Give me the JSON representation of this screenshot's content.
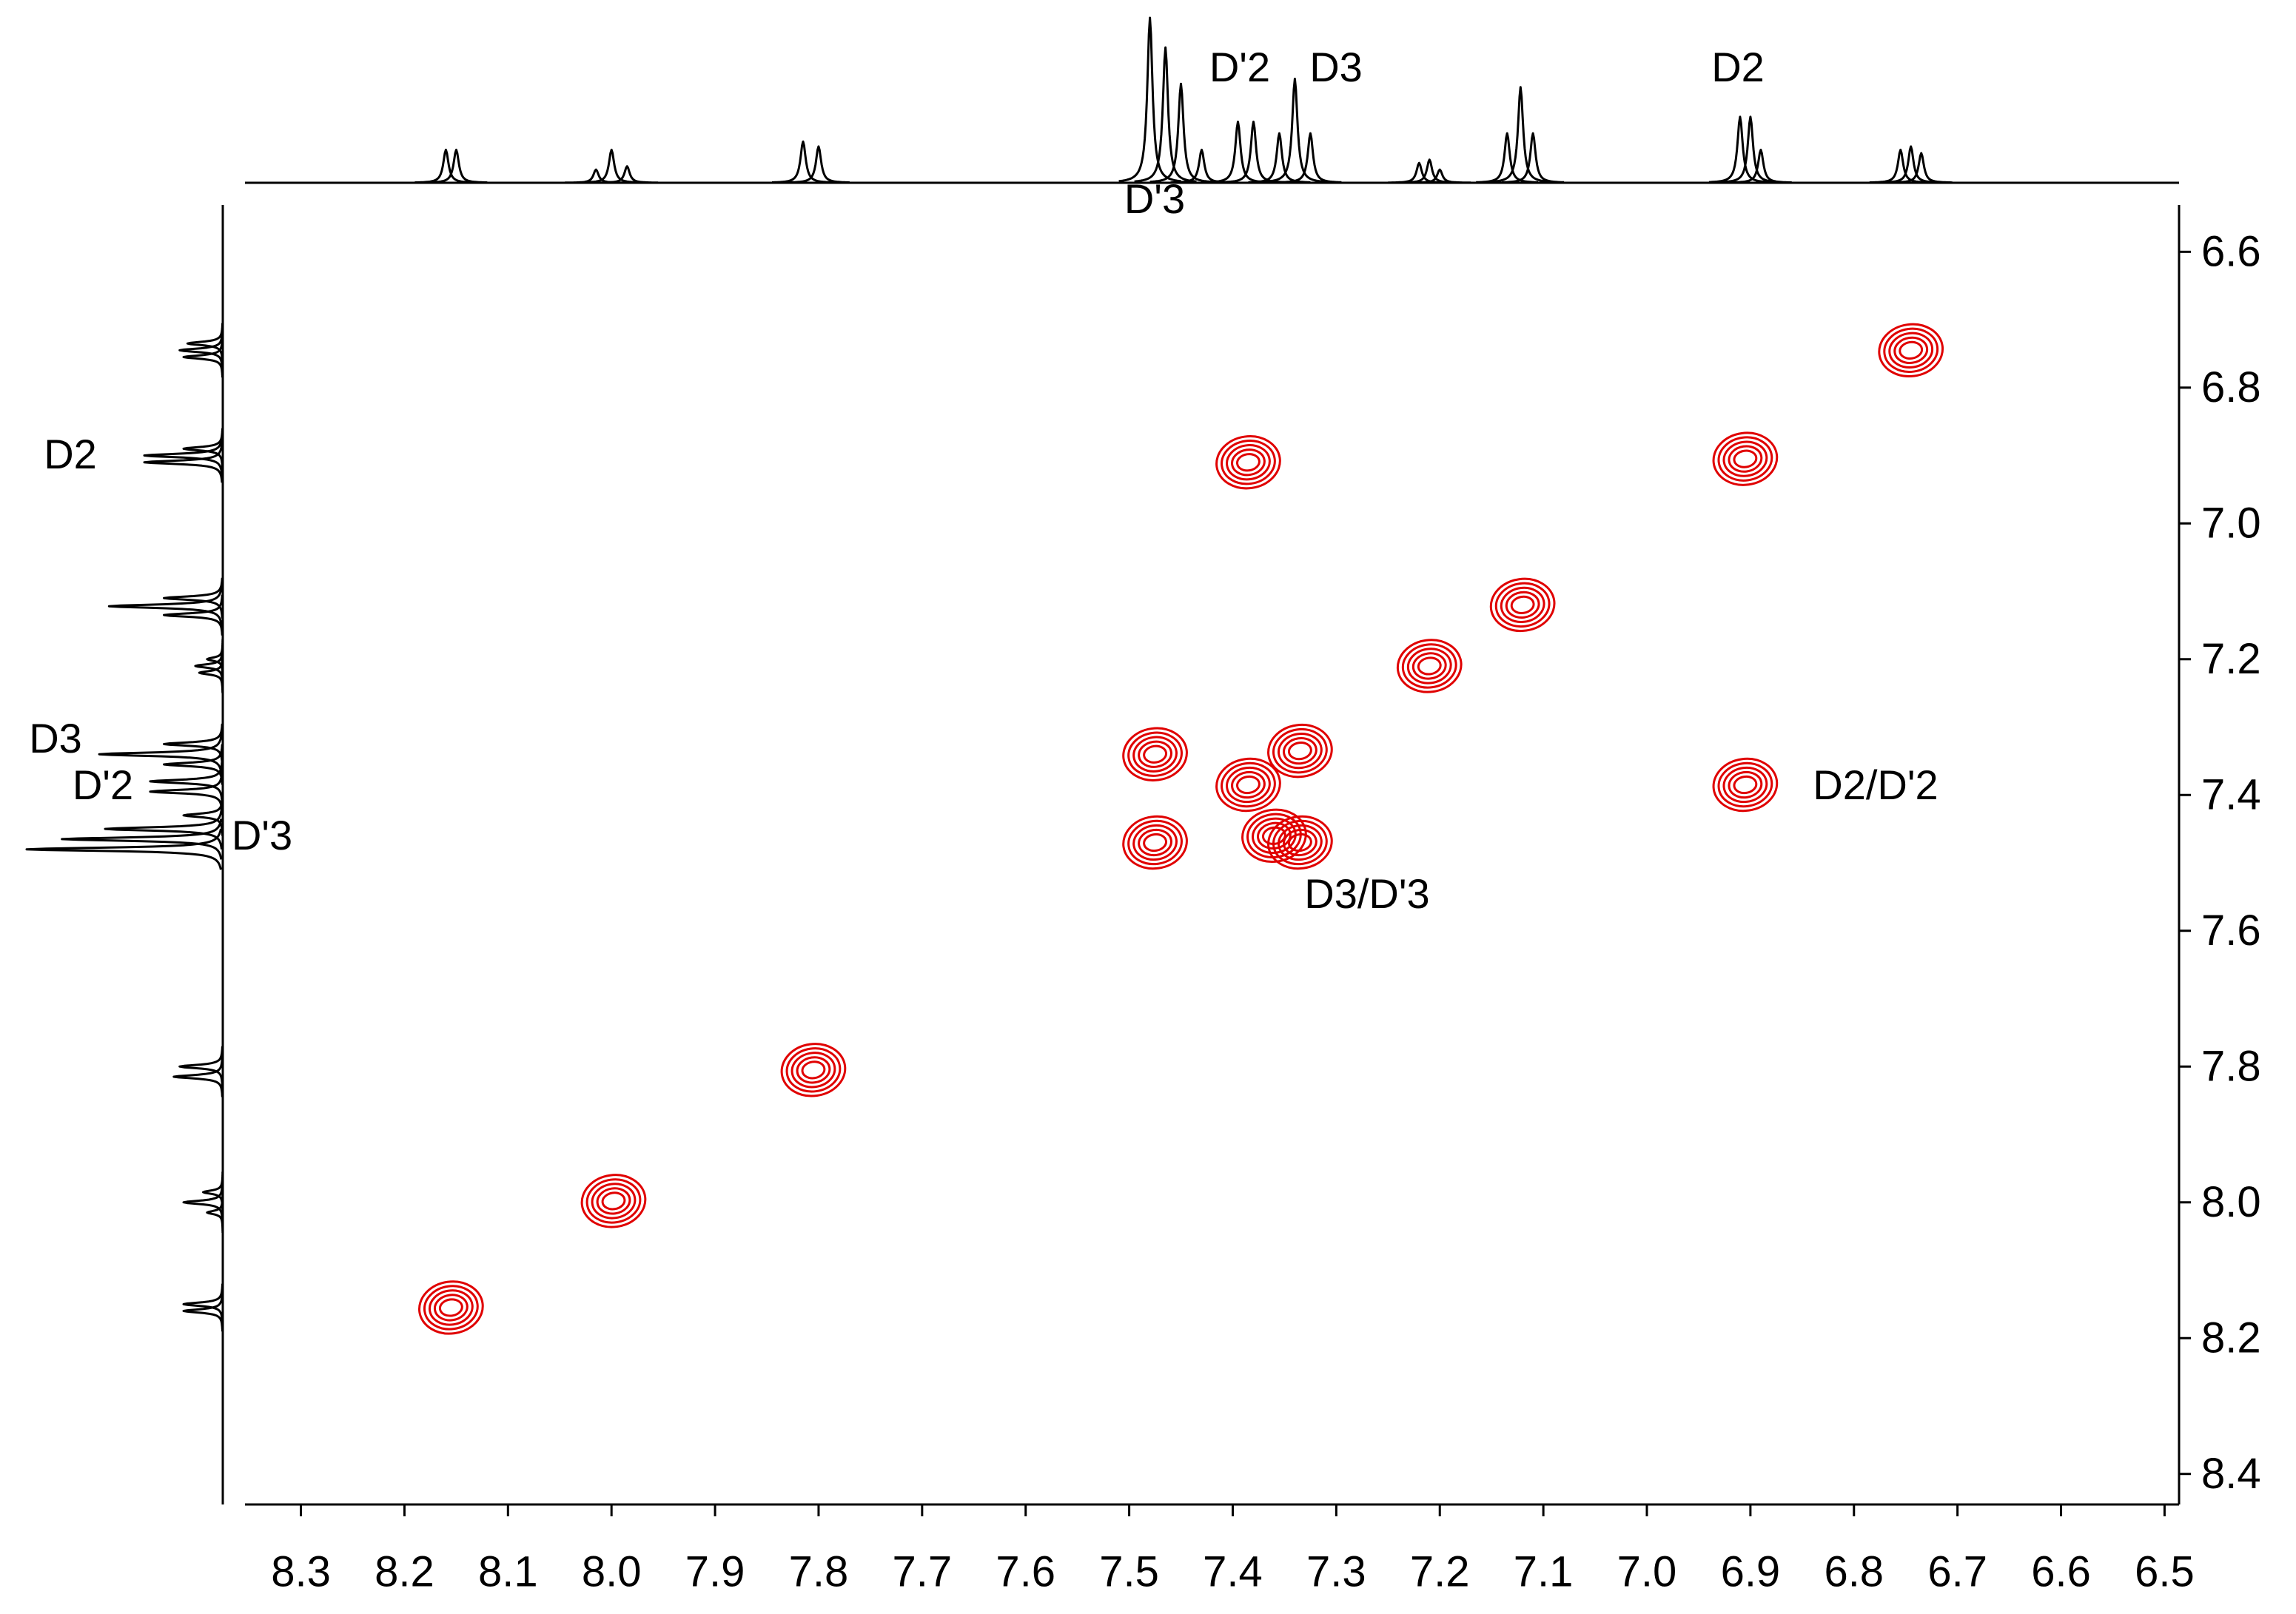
{
  "chart_data": {
    "type": "contour",
    "color": "#e00000",
    "xlim": [
      8.354,
      6.486
    ],
    "xticks": [
      8.3,
      8.2,
      8.1,
      {
        "value": 8,
        "label": "8.0"
      },
      7.9,
      7.8,
      7.7,
      7.6,
      7.5,
      7.4,
      7.3,
      7.2,
      7.1,
      {
        "value": 7,
        "label": "7.0"
      },
      6.9,
      6.8,
      6.7,
      6.6,
      6.5
    ],
    "ylim": [
      6.531,
      8.445
    ],
    "yticks": [
      6.6,
      6.8,
      {
        "value": 7,
        "label": "7.0"
      },
      7.2,
      7.4,
      7.6,
      7.8,
      {
        "value": 8,
        "label": "8.0"
      },
      8.2,
      8.4
    ],
    "x": [
      8.155,
      7.998,
      7.805,
      7.475,
      7.475,
      7.385,
      7.335,
      7.36,
      7.335,
      7.385,
      7.21,
      7.12,
      6.905,
      6.745,
      6.905
    ],
    "y": [
      8.155,
      7.998,
      7.805,
      7.34,
      7.47,
      7.385,
      7.335,
      7.46,
      7.47,
      6.91,
      7.21,
      7.12,
      6.905,
      6.745,
      7.385
    ],
    "projection": {
      "positions": [
        8.16,
        8.15,
        8.015,
        8.0,
        7.985,
        7.815,
        7.8,
        7.48,
        7.465,
        7.45,
        7.43,
        7.395,
        7.38,
        7.355,
        7.34,
        7.325,
        7.22,
        7.21,
        7.2,
        7.135,
        7.122,
        7.11,
        6.91,
        6.9,
        6.89,
        6.755,
        6.745,
        6.735
      ],
      "heights": [
        0.2,
        0.2,
        0.08,
        0.2,
        0.1,
        0.25,
        0.22,
        1.0,
        0.82,
        0.6,
        0.2,
        0.37,
        0.37,
        0.3,
        0.63,
        0.3,
        0.12,
        0.14,
        0.08,
        0.3,
        0.58,
        0.3,
        0.4,
        0.4,
        0.2,
        0.2,
        0.22,
        0.18
      ]
    },
    "annotations": [
      "D'2",
      "D3",
      "D2",
      "D'3",
      "D2",
      "D3",
      "D'2",
      "D'3",
      "D2/D'2",
      "D3/D'3"
    ]
  }
}
